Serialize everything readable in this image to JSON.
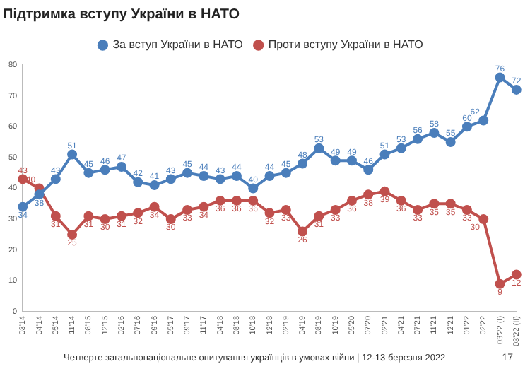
{
  "chart_data": {
    "type": "line",
    "title": "Підтримка вступу України в НАТО",
    "categories": [
      "03'14",
      "04'14",
      "05'14",
      "11'14",
      "08'15",
      "12'15",
      "02'16",
      "07'16",
      "09'16",
      "05'17",
      "09'17",
      "11'17",
      "04'18",
      "08'18",
      "10'18",
      "12'18",
      "02'19",
      "04'19",
      "08'19",
      "10'19",
      "05'20",
      "07'20",
      "02'21",
      "04'21",
      "07'21",
      "11'21",
      "12'21",
      "01'22",
      "02'22",
      "03'22 (I)",
      "03'22 (II)"
    ],
    "series": [
      {
        "name": "За вступ України в НАТО",
        "color": "#4a7ebb",
        "values": [
          34,
          38,
          43,
          51,
          45,
          46,
          47,
          42,
          41,
          43,
          45,
          44,
          43,
          44,
          40,
          44,
          45,
          48,
          53,
          49,
          49,
          46,
          51,
          53,
          56,
          58,
          55,
          60,
          62,
          76,
          72
        ]
      },
      {
        "name": "Проти вступу України в НАТО",
        "color": "#c0504d",
        "values": [
          43,
          40,
          31,
          25,
          31,
          30,
          31,
          32,
          34,
          30,
          33,
          34,
          36,
          36,
          36,
          32,
          33,
          26,
          31,
          33,
          36,
          38,
          39,
          36,
          33,
          35,
          35,
          33,
          30,
          9,
          12
        ]
      }
    ],
    "ylim": [
      0,
      80
    ],
    "yticks": [
      0,
      10,
      20,
      30,
      40,
      50,
      60,
      70,
      80
    ],
    "grid": false,
    "legend": "top",
    "marker": "circle",
    "data_labels": true,
    "annotations": [
      "Четверте загальнонаціональне опитування українців в умовах війни | 12-13 березня 2022",
      "17"
    ]
  }
}
